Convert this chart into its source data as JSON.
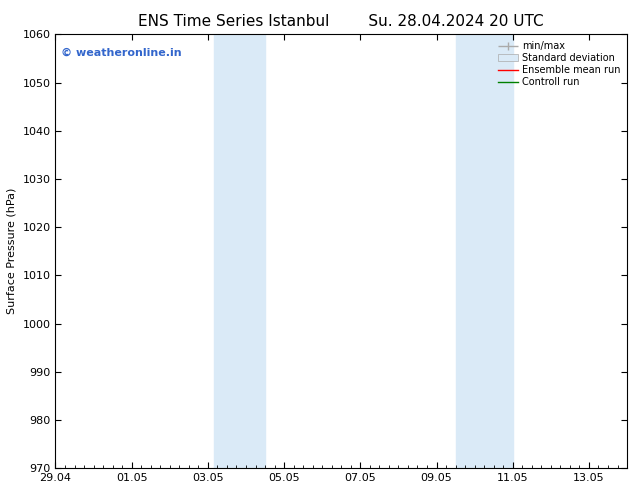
{
  "title": "ENS Time Series Istanbul",
  "title2": "Su. 28.04.2024 20 UTC",
  "ylabel": "Surface Pressure (hPa)",
  "ylim": [
    970,
    1060
  ],
  "yticks": [
    970,
    980,
    990,
    1000,
    1010,
    1020,
    1030,
    1040,
    1050,
    1060
  ],
  "xlim_start": 0,
  "xlim_end": 15,
  "xtick_labels": [
    "29.04",
    "01.05",
    "03.05",
    "05.05",
    "07.05",
    "09.05",
    "11.05",
    "13.05"
  ],
  "xtick_positions": [
    0,
    2,
    4,
    6,
    8,
    10,
    12,
    14
  ],
  "shaded_bands": [
    {
      "x_start": 4.17,
      "x_end": 5.5
    },
    {
      "x_start": 10.5,
      "x_end": 12.0
    }
  ],
  "shaded_color": "#daeaf7",
  "watermark_text": "© weatheronline.in",
  "watermark_color": "#3366cc",
  "legend_items": [
    {
      "label": "min/max",
      "color": "#aaaaaa",
      "lw": 1.0
    },
    {
      "label": "Standard deviation",
      "color": "#daeaf7",
      "edgecolor": "#aaaaaa"
    },
    {
      "label": "Ensemble mean run",
      "color": "red",
      "lw": 1.0
    },
    {
      "label": "Controll run",
      "color": "green",
      "lw": 1.0
    }
  ],
  "bg_color": "#ffffff",
  "spine_color": "#000000",
  "title_fontsize": 11,
  "ylabel_fontsize": 8,
  "tick_fontsize": 8,
  "legend_fontsize": 7,
  "watermark_fontsize": 8
}
